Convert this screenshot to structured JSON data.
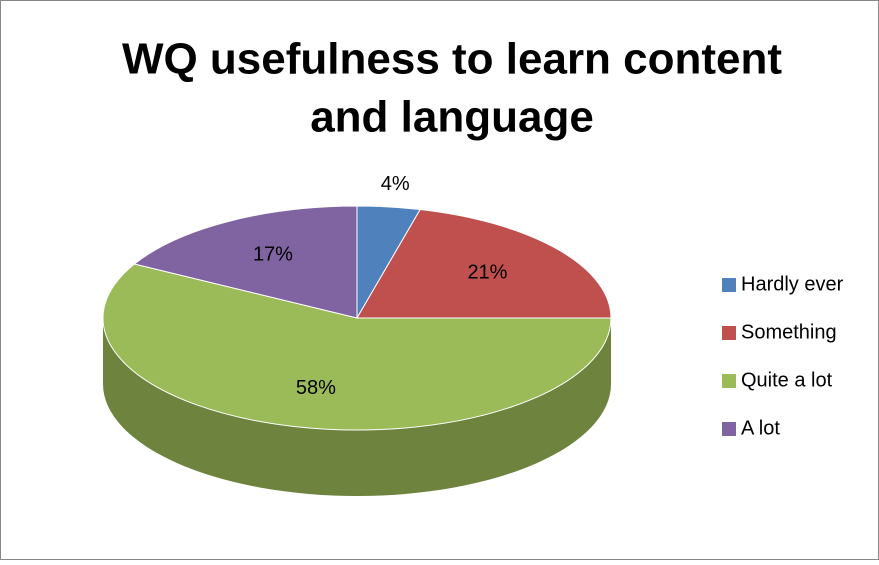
{
  "chart_data": {
    "type": "pie",
    "title": [
      "WQ usefulness to learn content",
      "and language"
    ],
    "categories": [
      "Hardly ever",
      "Something",
      "Quite a lot",
      "A lot"
    ],
    "values": [
      4,
      21,
      58,
      17
    ],
    "value_labels": [
      "4%",
      "21%",
      "58%",
      "17%"
    ],
    "colors": [
      "#4f81bd",
      "#c0504d",
      "#9bbb59",
      "#8064a2"
    ],
    "legend": "right",
    "style": "3d"
  }
}
